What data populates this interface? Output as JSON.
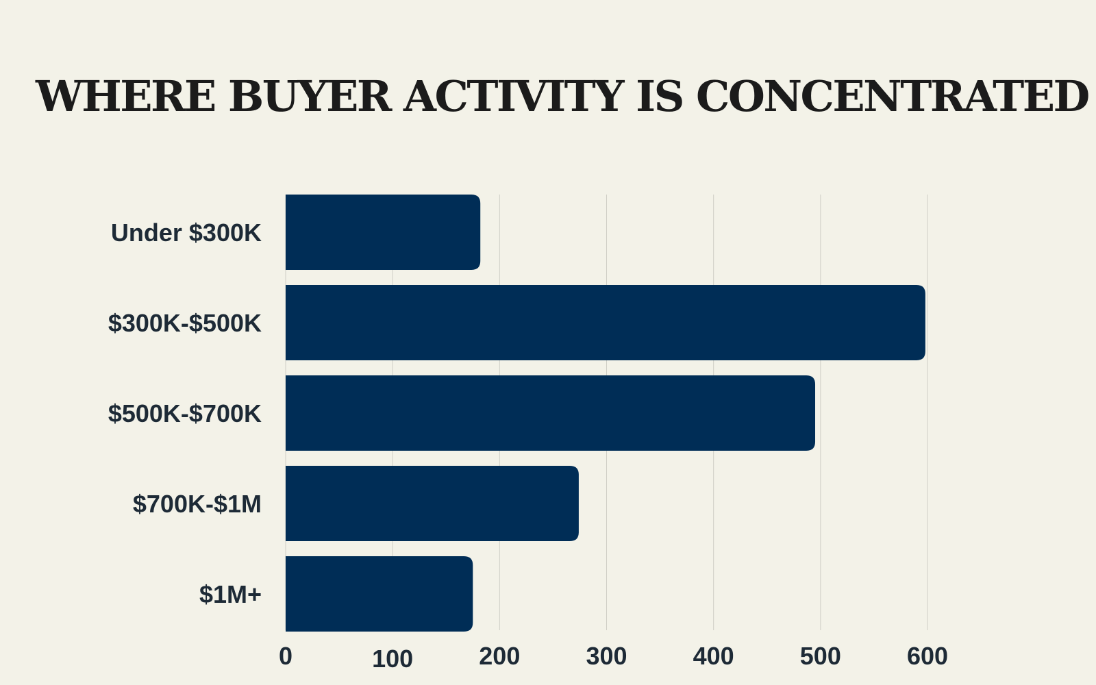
{
  "title": "WHERE BUYER ACTIVITY IS CONCENTRATED",
  "colors": {
    "background": "#f3f2e8",
    "bar": "#002d56",
    "grid": "#cfcfc6",
    "text": "#1d2a36"
  },
  "chart_data": {
    "type": "bar",
    "orientation": "horizontal",
    "title": "WHERE BUYER ACTIVITY IS CONCENTRATED",
    "categories": [
      "Under $300K",
      "$300K-$500K",
      "$500K-$700K",
      "$700K-$1M",
      "$1M+"
    ],
    "values": [
      182,
      598,
      495,
      274,
      175
    ],
    "xlim": [
      0,
      600
    ],
    "xticks": [
      0,
      100,
      200,
      300,
      400,
      500,
      600
    ],
    "xtick_labels": [
      "0",
      "100",
      "200",
      "300",
      "400",
      "500",
      "600"
    ],
    "grid": true,
    "legend": "none"
  }
}
